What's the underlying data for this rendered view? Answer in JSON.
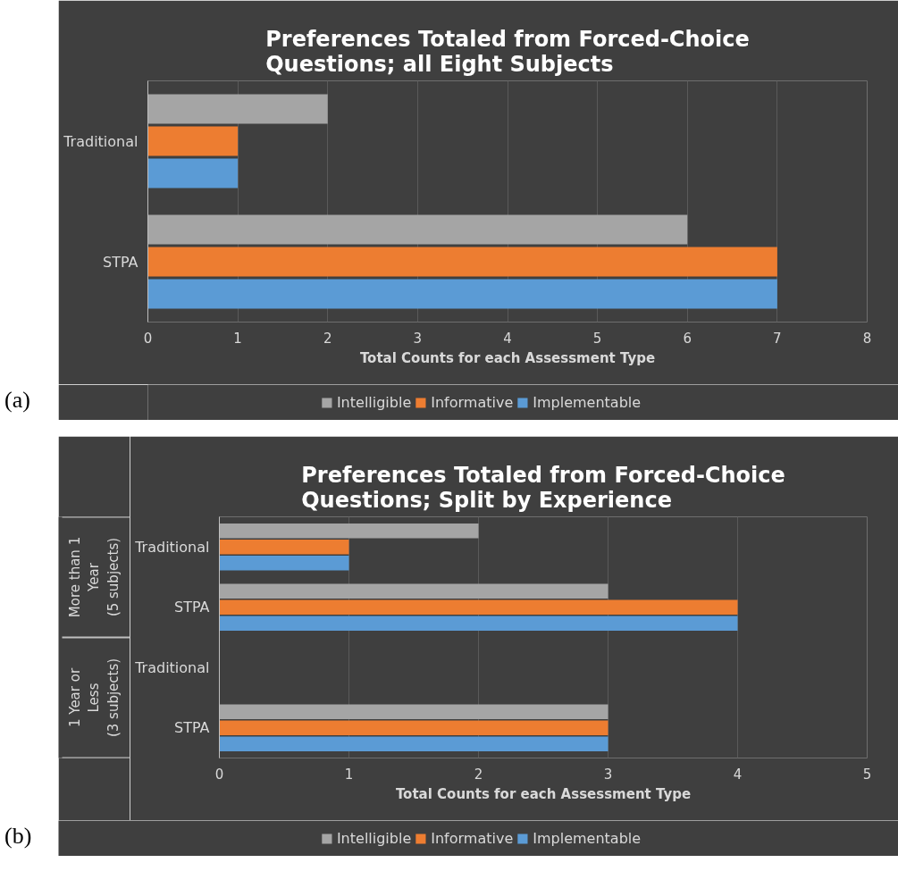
{
  "chart_data": [
    {
      "type": "bar",
      "orientation": "horizontal",
      "title": "Preferences Totaled from Forced-Choice Questions; all Eight Subjects",
      "xlabel": "Total Counts for each Assessment Type",
      "categories": [
        "Traditional",
        "STPA"
      ],
      "series": [
        {
          "name": "Intelligible",
          "color": "#a5a5a5",
          "values": [
            2,
            6
          ]
        },
        {
          "name": "Informative",
          "color": "#ed7d31",
          "values": [
            1,
            7
          ]
        },
        {
          "name": "Implementable",
          "color": "#5b9bd5",
          "values": [
            1,
            7
          ]
        }
      ],
      "xlim": [
        0,
        8
      ],
      "xticks": [
        0,
        1,
        2,
        3,
        4,
        5,
        6,
        7,
        8
      ],
      "grid": "x",
      "legend": "bottom",
      "annotations": [
        "(a)"
      ]
    },
    {
      "type": "bar",
      "orientation": "horizontal",
      "title": "Preferences Totaled from Forced-Choice Questions; Split by Experience",
      "xlabel": "Total Counts for each Assessment Type",
      "categories": [
        "Traditional",
        "STPA",
        "Traditional",
        "STPA"
      ],
      "series": [
        {
          "name": "Intelligible",
          "color": "#a5a5a5",
          "values": [
            2,
            3,
            0,
            3
          ]
        },
        {
          "name": "Informative",
          "color": "#ed7d31",
          "values": [
            1,
            4,
            0,
            3
          ]
        },
        {
          "name": "Implementable",
          "color": "#5b9bd5",
          "values": [
            1,
            4,
            0,
            3
          ]
        }
      ],
      "xlim": [
        0,
        5
      ],
      "xticks": [
        0,
        1,
        2,
        3,
        4,
        5
      ],
      "grid": "x",
      "legend": "bottom",
      "annotations": [
        "(b)",
        "More than 1\nYear\n(5 subjects)",
        "1 Year or\nLess\n(3 subjects)"
      ]
    }
  ]
}
